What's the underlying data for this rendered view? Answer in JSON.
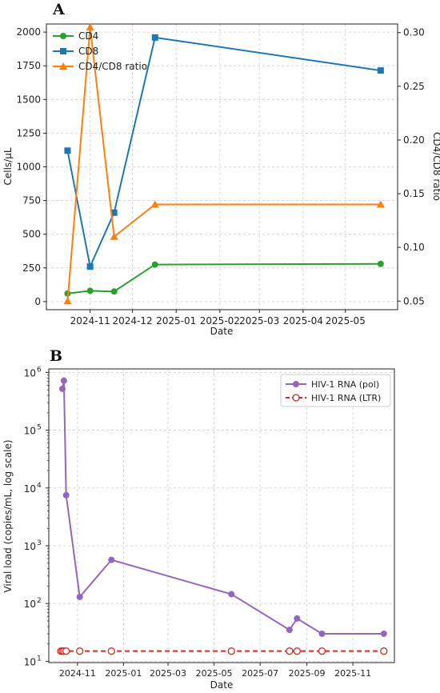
{
  "colors": {
    "cd4": "#2ca02c",
    "cd8": "#1f77b4",
    "ratio": "#ff7f0e",
    "pol": "#9467bd",
    "ltr": "#d62728",
    "grid": "#cccccc"
  },
  "chart_data": [
    {
      "panel": "A",
      "type": "line",
      "xlabel": "Date",
      "ylabel": "Cells/μL",
      "ylabel_right": "CD4/CD8 ratio",
      "x_type": "date",
      "xlim": [
        "2024-10-01",
        "2025-06-07"
      ],
      "ylim": [
        -60,
        2060
      ],
      "ylim_right": [
        0.042,
        0.308
      ],
      "grid": true,
      "legend_position": "top-left",
      "x_ticks": [
        {
          "date": "2024-11-01",
          "label": "2024-11"
        },
        {
          "date": "2024-12-01",
          "label": "2024-12"
        },
        {
          "date": "2025-01-01",
          "label": "2025-01"
        },
        {
          "date": "2025-02-01",
          "label": "2025-02"
        },
        {
          "date": "2025-03-01",
          "label": "2025-03"
        },
        {
          "date": "2025-04-01",
          "label": "2025-04"
        },
        {
          "date": "2025-05-01",
          "label": "2025-05"
        }
      ],
      "y_ticks": [
        {
          "value": 0,
          "label": "0"
        },
        {
          "value": 250,
          "label": "250"
        },
        {
          "value": 500,
          "label": "500"
        },
        {
          "value": 750,
          "label": "750"
        },
        {
          "value": 1000,
          "label": "1000"
        },
        {
          "value": 1250,
          "label": "1250"
        },
        {
          "value": 1500,
          "label": "1500"
        },
        {
          "value": 1750,
          "label": "1750"
        },
        {
          "value": 2000,
          "label": "2000"
        }
      ],
      "y_ticks_right": [
        {
          "value": 0.05,
          "label": "0.05"
        },
        {
          "value": 0.1,
          "label": "0.10"
        },
        {
          "value": 0.15,
          "label": "0.15"
        },
        {
          "value": 0.2,
          "label": "0.20"
        },
        {
          "value": 0.25,
          "label": "0.25"
        },
        {
          "value": 0.3,
          "label": "0.30"
        }
      ],
      "series": [
        {
          "name": "CD4",
          "key": "cd4",
          "axis": "left",
          "marker": "circle",
          "x": [
            "2024-10-16",
            "2024-11-01",
            "2024-11-18",
            "2024-12-17",
            "2025-05-26"
          ],
          "y": [
            60,
            80,
            75,
            275,
            280
          ]
        },
        {
          "name": "CD8",
          "key": "cd8",
          "axis": "left",
          "marker": "square",
          "x": [
            "2024-10-16",
            "2024-11-01",
            "2024-11-18",
            "2024-12-17",
            "2025-05-26"
          ],
          "y": [
            1120,
            260,
            660,
            1960,
            1715
          ]
        },
        {
          "name": "CD4/CD8 ratio",
          "key": "ratio",
          "axis": "right",
          "marker": "triangle",
          "x": [
            "2024-10-16",
            "2024-11-01",
            "2024-11-18",
            "2024-12-17",
            "2025-05-26"
          ],
          "y": [
            0.05,
            0.305,
            0.11,
            0.14,
            0.14
          ]
        }
      ]
    },
    {
      "panel": "B",
      "type": "line",
      "xlabel": "Date",
      "ylabel": "Viral load (copies/mL, log scale)",
      "x_type": "date",
      "y_scale": "log",
      "xlim": [
        "2024-09-24",
        "2025-12-26"
      ],
      "ylim": [
        9.5,
        1150000
      ],
      "grid": true,
      "legend_position": "top-right",
      "x_ticks": [
        {
          "date": "2024-11-01",
          "label": "2024-11"
        },
        {
          "date": "2025-01-01",
          "label": "2025-01"
        },
        {
          "date": "2025-03-01",
          "label": "2025-03"
        },
        {
          "date": "2025-05-01",
          "label": "2025-05"
        },
        {
          "date": "2025-07-01",
          "label": "2025-07"
        },
        {
          "date": "2025-09-01",
          "label": "2025-09"
        },
        {
          "date": "2025-11-01",
          "label": "2025-11"
        }
      ],
      "y_ticks": [
        {
          "value": 10,
          "base": "10",
          "exp": "1"
        },
        {
          "value": 100,
          "base": "10",
          "exp": "2"
        },
        {
          "value": 1000,
          "base": "10",
          "exp": "3"
        },
        {
          "value": 10000,
          "base": "10",
          "exp": "4"
        },
        {
          "value": 100000,
          "base": "10",
          "exp": "5"
        },
        {
          "value": 1000000,
          "base": "10",
          "exp": "6"
        }
      ],
      "series": [
        {
          "name": "HIV-1 RNA (pol)",
          "key": "pol",
          "marker": "circle",
          "line": "solid",
          "x": [
            "2024-10-12",
            "2024-10-14",
            "2024-10-17",
            "2024-11-04",
            "2024-12-16",
            "2025-05-24",
            "2025-08-09",
            "2025-08-19",
            "2025-09-21",
            "2025-12-12"
          ],
          "y": [
            520000,
            720000,
            7500,
            130,
            570,
            145,
            35,
            55,
            30,
            30
          ]
        },
        {
          "name": "HIV-1 RNA (LTR)",
          "key": "ltr",
          "marker": "open-circle",
          "line": "dashed",
          "x": [
            "2024-10-10",
            "2024-10-12",
            "2024-10-14",
            "2024-10-17",
            "2024-11-04",
            "2024-12-16",
            "2025-05-24",
            "2025-08-09",
            "2025-08-19",
            "2025-09-21",
            "2025-12-12"
          ],
          "y": [
            15,
            15,
            15,
            15,
            15,
            15,
            15,
            15,
            15,
            15,
            15
          ]
        }
      ]
    }
  ]
}
